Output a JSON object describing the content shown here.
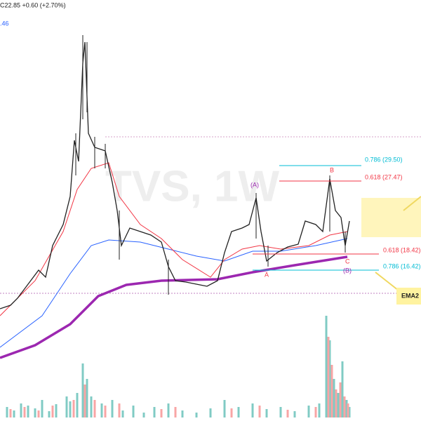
{
  "header": {
    "quote": "C22.85 +0.60 (+2.70%)",
    "indicator": ".46"
  },
  "watermark": "TVS, 1W",
  "fibs": [
    {
      "label": "0.786 (29.50)"
    },
    {
      "label": "0.618 (27.47)"
    },
    {
      "label": "0.618 (18.42)"
    },
    {
      "label": "0.786 (16.42)"
    }
  ],
  "waves": {
    "a_upper": "(A)",
    "b": "B",
    "a": "A",
    "c": "C",
    "b_lower": "(B)"
  },
  "callout": "EMA2"
}
